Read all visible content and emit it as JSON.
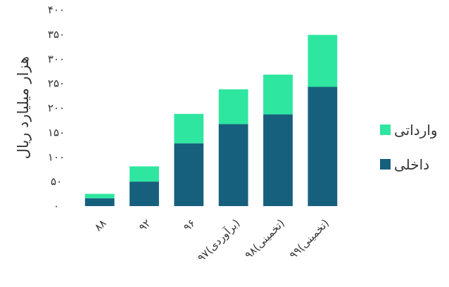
{
  "chart_data": {
    "type": "bar",
    "stacked": true,
    "categories": [
      "۸۸",
      "۹۲",
      "۹۶",
      "۹۷(برآوردی)",
      "۹۸(تخمینی)",
      "۹۹(تخمینی)"
    ],
    "series": [
      {
        "name": "داخلی",
        "color": "#17607D",
        "values": [
          16,
          50,
          128,
          167,
          187,
          243
        ]
      },
      {
        "name": "وارداتی",
        "color": "#2EE6A0",
        "values": [
          9,
          31,
          60,
          71,
          81,
          106
        ]
      }
    ],
    "ylabel": "هزار میلیارد ریال",
    "ylim": [
      0,
      400
    ],
    "yticks": [
      0,
      50,
      100,
      150,
      200,
      250,
      300,
      350,
      400
    ],
    "ytick_labels": [
      "۰",
      "۵۰",
      "۱۰۰",
      "۱۵۰",
      "۲۰۰",
      "۲۵۰",
      "۳۰۰",
      "۳۵۰",
      "۴۰۰"
    ],
    "grid": false,
    "legend_position": "right"
  }
}
